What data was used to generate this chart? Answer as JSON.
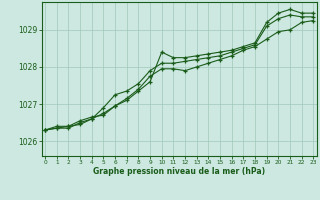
{
  "xlabel": "Graphe pression niveau de la mer (hPa)",
  "background_color": "#cce8e0",
  "line_color": "#1a5c1a",
  "grid_color": "#a0c8b8",
  "x_ticks": [
    0,
    1,
    2,
    3,
    4,
    5,
    6,
    7,
    8,
    9,
    10,
    11,
    12,
    13,
    14,
    15,
    16,
    17,
    18,
    19,
    20,
    21,
    22,
    23
  ],
  "ylim": [
    1025.6,
    1029.75
  ],
  "yticks": [
    1026,
    1027,
    1028,
    1029
  ],
  "series1": [
    1026.3,
    1026.4,
    1026.4,
    1026.55,
    1026.65,
    1026.7,
    1026.95,
    1027.1,
    1027.35,
    1027.6,
    1028.4,
    1028.25,
    1028.25,
    1028.3,
    1028.35,
    1028.4,
    1028.45,
    1028.55,
    1028.65,
    1029.2,
    1029.45,
    1029.55,
    1029.45,
    1029.45
  ],
  "series2": [
    1026.3,
    1026.35,
    1026.35,
    1026.5,
    1026.6,
    1026.9,
    1027.25,
    1027.35,
    1027.55,
    1027.9,
    1028.1,
    1028.1,
    1028.15,
    1028.2,
    1028.25,
    1028.3,
    1028.4,
    1028.5,
    1028.6,
    1029.1,
    1029.3,
    1029.4,
    1029.35,
    1029.35
  ],
  "series3": [
    1026.3,
    1026.35,
    1026.4,
    1026.45,
    1026.6,
    1026.75,
    1026.95,
    1027.15,
    1027.4,
    1027.75,
    1027.95,
    1027.95,
    1027.9,
    1028.0,
    1028.1,
    1028.2,
    1028.3,
    1028.45,
    1028.55,
    1028.75,
    1028.95,
    1029.0,
    1029.2,
    1029.25
  ]
}
